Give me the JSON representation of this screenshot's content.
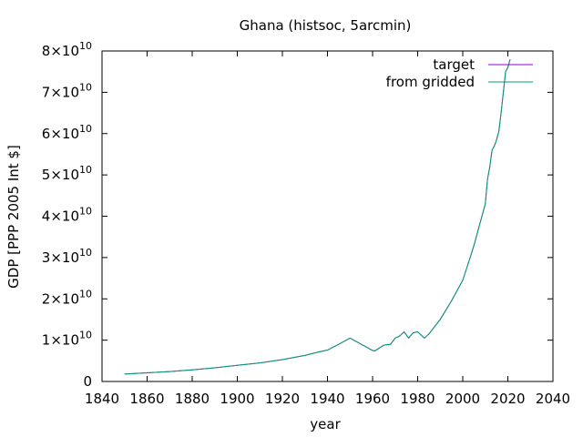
{
  "chart_data": {
    "type": "line",
    "title": "Ghana (histsoc, 5arcmin)",
    "xlabel": "year",
    "ylabel": "GDP [PPP 2005 Int $]",
    "xlim": [
      1840,
      2040
    ],
    "ylim": [
      0,
      80000000000.0
    ],
    "xticks": [
      1840,
      1860,
      1880,
      1900,
      1920,
      1940,
      1960,
      1980,
      2000,
      2020,
      2040
    ],
    "xtick_labels": [
      "1840",
      "1860",
      "1880",
      "1900",
      "1920",
      "1940",
      "1960",
      "1980",
      "2000",
      "2020",
      "2040"
    ],
    "yticks": [
      {
        "value": 0,
        "mant": "0",
        "exp": ""
      },
      {
        "value": 10000000000.0,
        "mant": "1×10",
        "exp": "10"
      },
      {
        "value": 20000000000.0,
        "mant": "2×10",
        "exp": "10"
      },
      {
        "value": 30000000000.0,
        "mant": "3×10",
        "exp": "10"
      },
      {
        "value": 40000000000.0,
        "mant": "4×10",
        "exp": "10"
      },
      {
        "value": 50000000000.0,
        "mant": "5×10",
        "exp": "10"
      },
      {
        "value": 60000000000.0,
        "mant": "6×10",
        "exp": "10"
      },
      {
        "value": 70000000000.0,
        "mant": "7×10",
        "exp": "10"
      },
      {
        "value": 80000000000.0,
        "mant": "8×10",
        "exp": "10"
      }
    ],
    "grid": false,
    "legend_position": "top-right",
    "series": [
      {
        "name": "target",
        "color": "#9400d3",
        "x": [
          1850,
          1860,
          1870,
          1880,
          1890,
          1900,
          1910,
          1920,
          1930,
          1935,
          1940,
          1945,
          1950,
          1955,
          1960,
          1961,
          1965,
          1968,
          1970,
          1972,
          1974,
          1976,
          1978,
          1980,
          1983,
          1985,
          1990,
          1995,
          2000,
          2003,
          2005,
          2008,
          2010,
          2011,
          2012,
          2013,
          2014,
          2015,
          2016,
          2017,
          2018,
          2019,
          2020,
          2021
        ],
        "y": [
          1800000000.0,
          2100000000.0,
          2400000000.0,
          2800000000.0,
          3300000000.0,
          3900000000.0,
          4500000000.0,
          5300000000.0,
          6300000000.0,
          7000000000.0,
          7600000000.0,
          9000000000.0,
          10500000000.0,
          9000000000.0,
          7500000000.0,
          7400000000.0,
          8800000000.0,
          9000000000.0,
          10500000000.0,
          11000000000.0,
          12000000000.0,
          10500000000.0,
          11800000000.0,
          12000000000.0,
          10500000000.0,
          11500000000.0,
          15000000000.0,
          19500000000.0,
          24500000000.0,
          29500000000.0,
          33000000000.0,
          39000000000.0,
          43000000000.0,
          49000000000.0,
          52000000000.0,
          56000000000.0,
          57000000000.0,
          58500000000.0,
          60500000000.0,
          65000000000.0,
          70000000000.0,
          75000000000.0,
          76000000000.0,
          78000000000.0
        ]
      },
      {
        "name": "from gridded",
        "color": "#009e73",
        "x": [
          1850,
          1860,
          1870,
          1880,
          1890,
          1900,
          1910,
          1920,
          1930,
          1935,
          1940,
          1945,
          1950,
          1955,
          1960,
          1961,
          1965,
          1968,
          1970,
          1972,
          1974,
          1976,
          1978,
          1980,
          1983,
          1985,
          1990,
          1995,
          2000,
          2003,
          2005,
          2008,
          2010,
          2011,
          2012,
          2013,
          2014,
          2015,
          2016,
          2017,
          2018,
          2019,
          2020,
          2021
        ],
        "y": [
          1800000000.0,
          2100000000.0,
          2400000000.0,
          2800000000.0,
          3300000000.0,
          3900000000.0,
          4500000000.0,
          5300000000.0,
          6300000000.0,
          7000000000.0,
          7600000000.0,
          9000000000.0,
          10500000000.0,
          9000000000.0,
          7500000000.0,
          7400000000.0,
          8800000000.0,
          9000000000.0,
          10500000000.0,
          11000000000.0,
          12000000000.0,
          10500000000.0,
          11800000000.0,
          12000000000.0,
          10500000000.0,
          11500000000.0,
          15000000000.0,
          19500000000.0,
          24500000000.0,
          29500000000.0,
          33000000000.0,
          39000000000.0,
          43000000000.0,
          49000000000.0,
          52000000000.0,
          56000000000.0,
          57000000000.0,
          58500000000.0,
          60500000000.0,
          65000000000.0,
          70000000000.0,
          75000000000.0,
          76000000000.0,
          78000000000.0
        ]
      }
    ]
  }
}
